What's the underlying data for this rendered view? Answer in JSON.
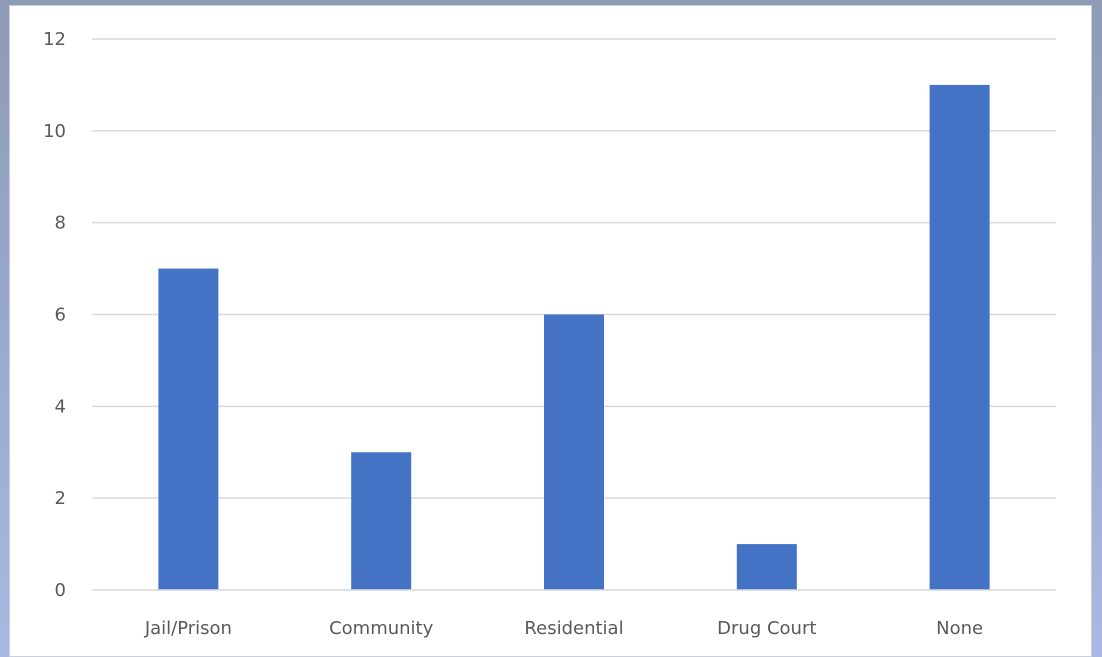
{
  "chart_data": {
    "type": "bar",
    "categories": [
      "Jail/Prison",
      "Community",
      "Residential",
      "Drug Court",
      "None"
    ],
    "values": [
      7,
      3,
      6,
      1,
      11
    ],
    "title": "",
    "xlabel": "",
    "ylabel": "",
    "ylim": [
      0,
      12
    ],
    "yticks": [
      0,
      2,
      4,
      6,
      8,
      10,
      12
    ],
    "grid": true,
    "bar_color": "#4472c4",
    "grid_color": "#d9d9d9"
  }
}
